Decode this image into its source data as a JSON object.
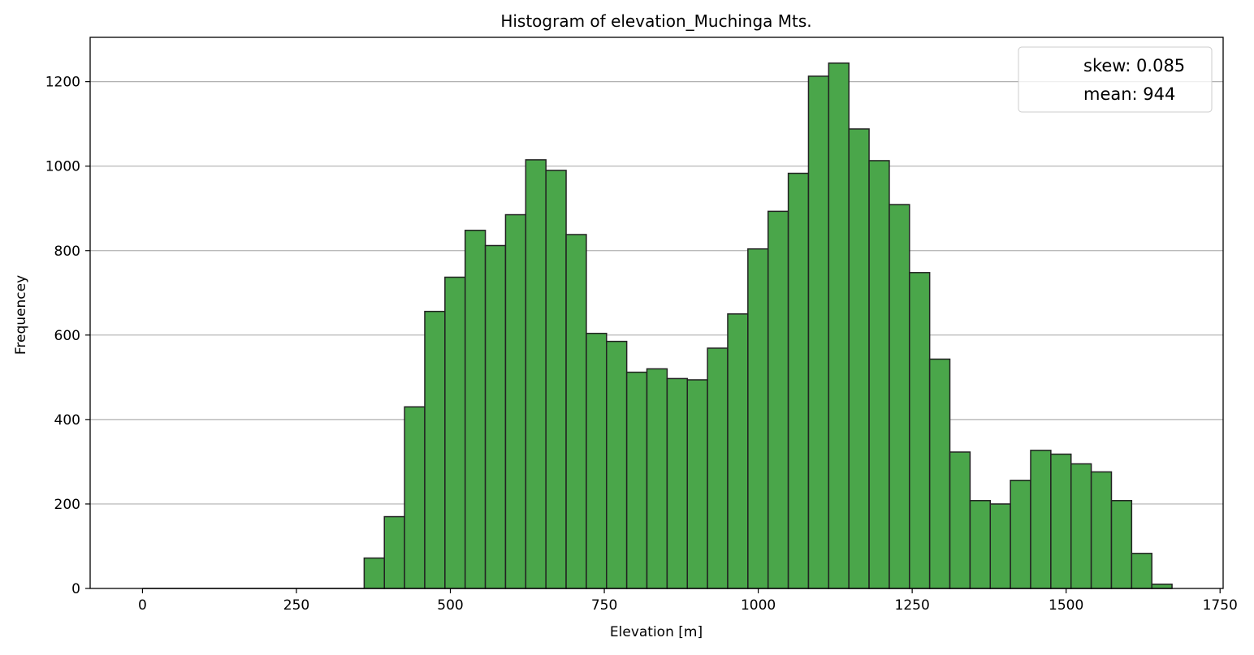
{
  "chart_data": {
    "type": "bar",
    "title": "Histogram of elevation_Muchinga Mts.",
    "xlabel": "Elevation [m]",
    "ylabel": "Frequencey",
    "xlim": [
      -85,
      1755
    ],
    "ylim": [
      0,
      1305
    ],
    "x_ticks": [
      0,
      250,
      500,
      750,
      1000,
      1250,
      1500,
      1750
    ],
    "y_ticks": [
      0,
      200,
      400,
      600,
      800,
      1000,
      1200
    ],
    "grid": "horizontal",
    "legend_placement": "top-right",
    "legend_entries": [
      "skew: 0.085",
      "mean: 944"
    ],
    "bar_color": "#4aa64a",
    "edge_color": "#222222",
    "zero_baseline_x": [
      0,
      360
    ],
    "bin_start": 360,
    "bin_width": 32.8,
    "values": [
      72,
      170,
      430,
      656,
      737,
      848,
      812,
      885,
      1015,
      990,
      838,
      604,
      585,
      512,
      520,
      497,
      494,
      569,
      650,
      804,
      893,
      983,
      1213,
      1244,
      1088,
      1013,
      909,
      748,
      543,
      323,
      208,
      200,
      256,
      327,
      318,
      295,
      276,
      208,
      83,
      10
    ]
  }
}
